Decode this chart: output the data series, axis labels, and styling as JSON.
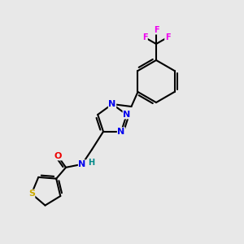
{
  "background_color": "#e8e8e8",
  "bond_color": "#000000",
  "atom_colors": {
    "N": "#0000ee",
    "O": "#ee0000",
    "S": "#ccaa00",
    "F": "#ee00ee",
    "H": "#008888",
    "C": "#000000"
  },
  "figsize": [
    3.0,
    3.0
  ],
  "dpi": 100
}
